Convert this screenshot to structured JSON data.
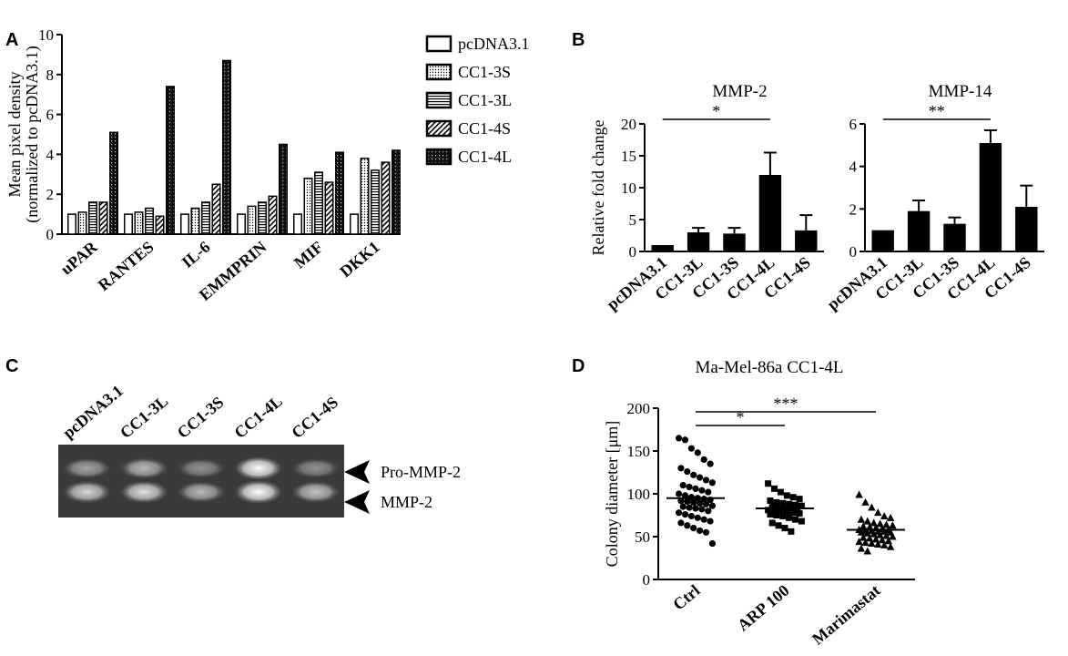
{
  "panels": {
    "a": "A",
    "b": "B",
    "c": "C",
    "d": "D"
  },
  "patterns": {
    "pcDNA3.1": "none",
    "CC1-3S": "dots",
    "CC1-3L": "hlines",
    "CC1-4S": "diag",
    "CC1-4L": "darkgrid"
  },
  "chart_data": [
    {
      "id": "a",
      "type": "bar",
      "ylabel": "Mean pixel density",
      "ylabel2": "(normalized to pcDNA3.1)",
      "ylim": [
        0,
        10
      ],
      "yticks": [
        0,
        2,
        4,
        6,
        8,
        10
      ],
      "categories": [
        "uPAR",
        "RANTES",
        "IL-6",
        "EMMPRIN",
        "MIF",
        "DKK1"
      ],
      "legend_position": "right",
      "series": [
        {
          "name": "pcDNA3.1",
          "values": [
            1.0,
            1.0,
            1.0,
            1.0,
            1.0,
            1.0
          ]
        },
        {
          "name": "CC1-3S",
          "values": [
            1.1,
            1.1,
            1.3,
            1.4,
            2.8,
            3.8
          ]
        },
        {
          "name": "CC1-3L",
          "values": [
            1.6,
            1.3,
            1.6,
            1.6,
            3.1,
            3.2
          ]
        },
        {
          "name": "CC1-4S",
          "values": [
            1.6,
            0.9,
            2.5,
            1.9,
            2.6,
            3.6
          ]
        },
        {
          "name": "CC1-4L",
          "values": [
            5.1,
            7.4,
            8.7,
            4.5,
            4.1,
            4.2
          ]
        }
      ]
    },
    {
      "id": "b1",
      "type": "bar",
      "title": "MMP-2",
      "ylabel": "Relative fold change",
      "ylim": [
        0,
        20
      ],
      "yticks": [
        0,
        5,
        10,
        15,
        20
      ],
      "categories": [
        "pcDNA3.1",
        "CC1-3L",
        "CC1-3S",
        "CC1-4L",
        "CC1-4S"
      ],
      "values": [
        1.0,
        3.0,
        2.8,
        12.0,
        3.3
      ],
      "errors": [
        0.0,
        0.7,
        0.9,
        3.5,
        2.4
      ],
      "significance": {
        "from": "pcDNA3.1",
        "to": "CC1-4L",
        "label": "*"
      }
    },
    {
      "id": "b2",
      "type": "bar",
      "title": "MMP-14",
      "ylim": [
        0,
        6
      ],
      "yticks": [
        0,
        2,
        4,
        6
      ],
      "categories": [
        "pcDNA3.1",
        "CC1-3L",
        "CC1-3S",
        "CC1-4L",
        "CC1-4S"
      ],
      "values": [
        1.0,
        1.9,
        1.3,
        5.1,
        2.1
      ],
      "errors": [
        0.0,
        0.5,
        0.3,
        0.6,
        1.0
      ],
      "significance": {
        "from": "pcDNA3.1",
        "to": "CC1-4L",
        "label": "**"
      }
    },
    {
      "id": "d",
      "type": "scatter",
      "title": "Ma-Mel-86a CC1-4L",
      "ylabel": "Colony diameter [μm]",
      "ylim": [
        0,
        200
      ],
      "yticks": [
        0,
        50,
        100,
        150,
        200
      ],
      "categories": [
        "Ctrl",
        "ARP 100",
        "Marimastat"
      ],
      "markers": [
        "circle",
        "square",
        "triangle"
      ],
      "means": [
        95,
        83,
        58
      ],
      "points": [
        [
          165,
          163,
          153,
          148,
          140,
          135,
          130,
          126,
          122,
          119,
          116,
          113,
          110,
          108,
          106,
          104,
          102,
          100,
          98,
          96,
          95,
          94,
          93,
          92,
          91,
          90,
          89,
          88,
          86,
          85,
          84,
          83,
          82,
          80,
          78,
          76,
          74,
          72,
          70,
          68,
          66,
          63,
          60,
          57,
          55,
          42
        ],
        [
          112,
          106,
          102,
          98,
          96,
          94,
          92,
          90,
          89,
          88,
          87,
          86,
          85,
          84,
          83,
          83,
          82,
          81,
          80,
          80,
          79,
          78,
          77,
          76,
          75,
          74,
          72,
          70,
          68,
          66,
          63,
          60,
          56
        ],
        [
          99,
          90,
          84,
          78,
          74,
          72,
          70,
          68,
          66,
          65,
          64,
          63,
          62,
          61,
          60,
          59,
          58,
          58,
          57,
          57,
          56,
          56,
          55,
          55,
          54,
          53,
          52,
          51,
          50,
          49,
          48,
          47,
          46,
          45,
          44,
          43,
          42,
          41,
          40,
          38,
          36,
          33
        ]
      ],
      "significance": [
        {
          "from": "Ctrl",
          "to": "ARP 100",
          "label": "*"
        },
        {
          "from": "Ctrl",
          "to": "Marimastat",
          "label": "***"
        }
      ]
    }
  ],
  "gel": {
    "lanes": [
      "pcDNA3.1",
      "CC1-3L",
      "CC1-3S",
      "CC1-4L",
      "CC1-4S"
    ],
    "bands": [
      "Pro-MMP-2",
      "MMP-2"
    ],
    "intensity": [
      [
        0.55,
        0.8
      ],
      [
        0.65,
        0.85
      ],
      [
        0.45,
        0.65
      ],
      [
        1.0,
        1.0
      ],
      [
        0.45,
        0.7
      ]
    ]
  }
}
